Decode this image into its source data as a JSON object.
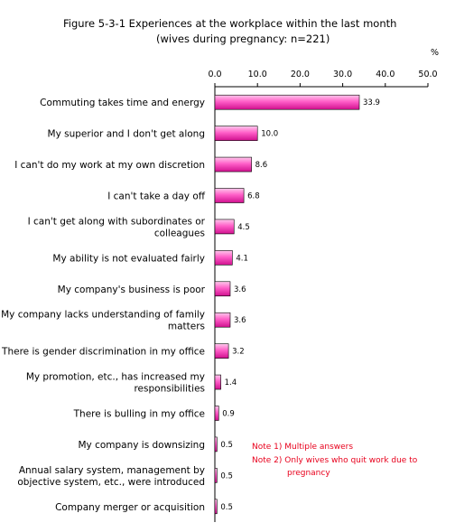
{
  "chart_data": {
    "type": "bar",
    "orientation": "horizontal",
    "title": "Figure 5-3-1 Experiences at the workplace within the last month",
    "subtitle": "(wives during pregnancy: n=221)",
    "unit": "%",
    "xlim": [
      0,
      50
    ],
    "xticks": [
      "0.0",
      "10.0",
      "20.0",
      "30.0",
      "40.0",
      "50.0"
    ],
    "categories": [
      [
        "Commuting takes time and energy"
      ],
      [
        "My superior and I don't get along"
      ],
      [
        "I can't do my work at my own discretion"
      ],
      [
        "I can't take a day off"
      ],
      [
        "I can't get along with subordinates or",
        "colleagues"
      ],
      [
        "My ability is not evaluated fairly"
      ],
      [
        "My company's business is poor"
      ],
      [
        "My company lacks understanding of family",
        "matters"
      ],
      [
        "There is gender discrimination in my office"
      ],
      [
        "My promotion, etc., has increased my",
        "responsibilities"
      ],
      [
        "There is bulling in my office"
      ],
      [
        "My company is downsizing"
      ],
      [
        "Annual salary system, management by",
        "objective system, etc., were introduced"
      ],
      [
        "Company merger or acquisition"
      ]
    ],
    "values": [
      33.9,
      10.0,
      8.6,
      6.8,
      4.5,
      4.1,
      3.6,
      3.6,
      3.2,
      1.4,
      0.9,
      0.5,
      0.5,
      0.5
    ],
    "value_labels": [
      "33.9",
      "10.0",
      "8.6",
      "6.8",
      "4.5",
      "4.1",
      "3.6",
      "3.6",
      "3.2",
      "1.4",
      "0.9",
      "0.5",
      "0.5",
      "0.5"
    ],
    "notes": [
      "Note 1) Multiple answers",
      "Note 2) Only wives who quit work due to",
      "pregnancy"
    ],
    "colors": {
      "bar_light": "#ffc8ec",
      "bar_mid": "#ff5fc8",
      "bar_dark": "#d0108e",
      "bar_stroke": "#000000",
      "note": "#e8001c"
    }
  }
}
